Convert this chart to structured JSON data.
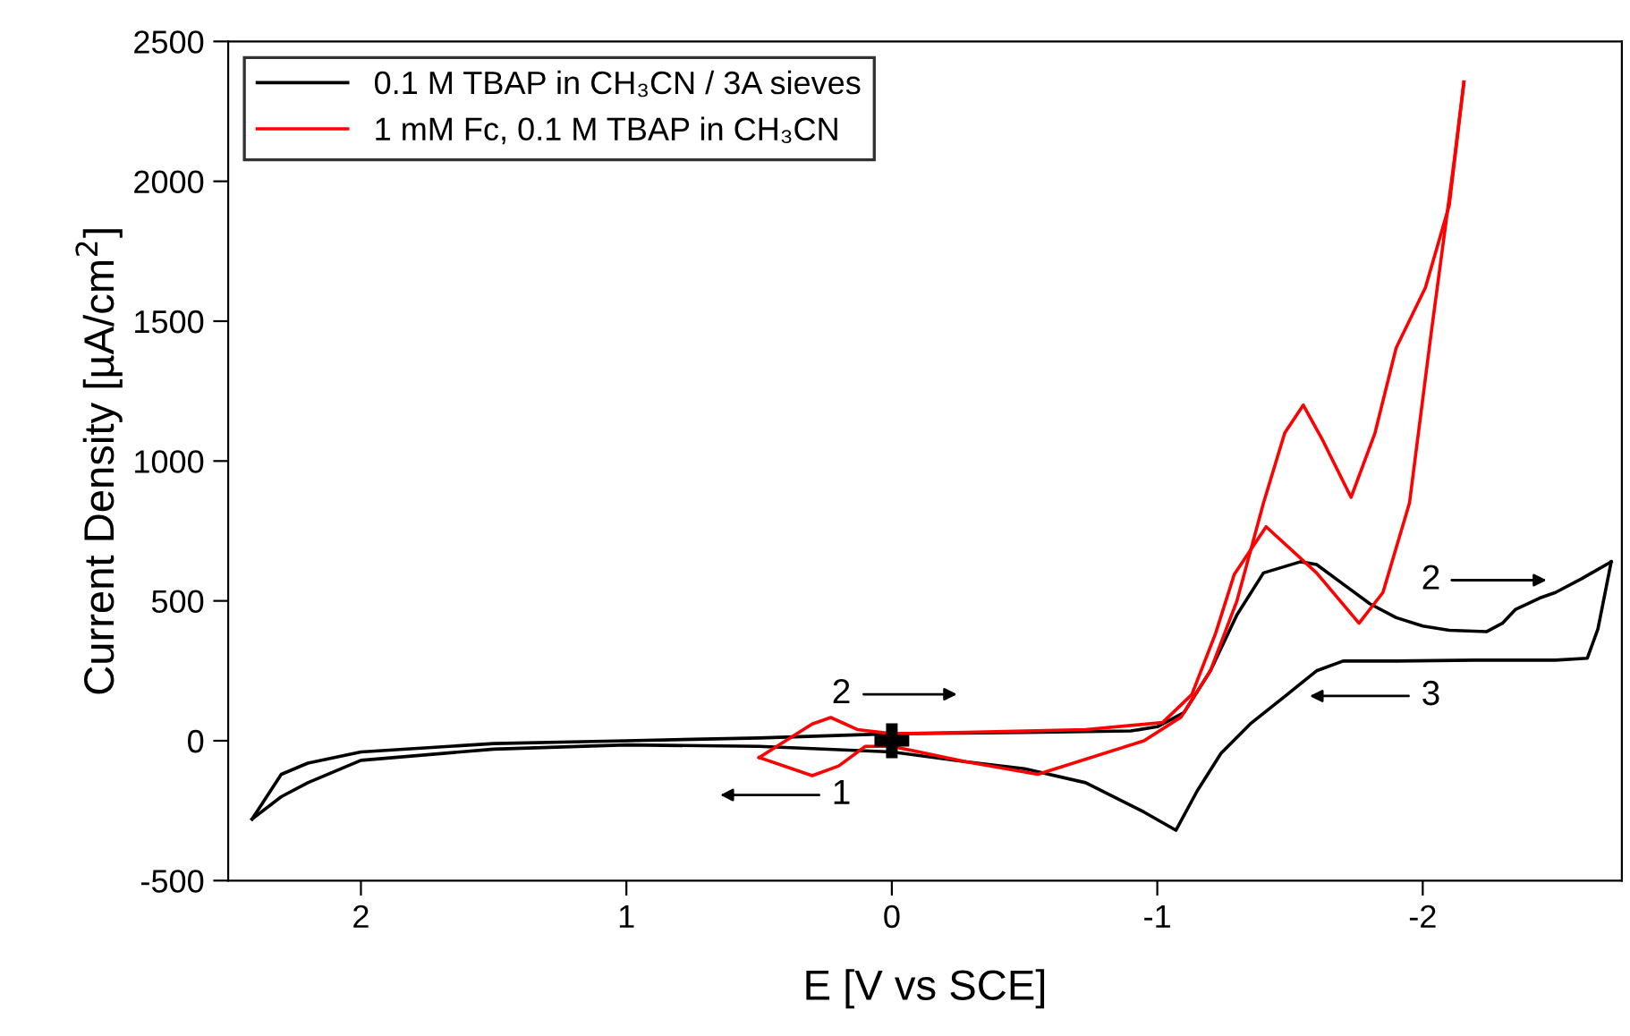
{
  "chart_data": {
    "type": "line",
    "xlabel": "E [V vs SCE]",
    "ylabel": "Current Density [µA/cm$^{2}$]",
    "xlim": [
      2.5,
      -2.75
    ],
    "xticks": [
      2,
      1,
      0,
      -1,
      -2
    ],
    "ylim": [
      -500,
      2500
    ],
    "yticks": [
      -500,
      0,
      500,
      1000,
      1500,
      2000,
      2500
    ],
    "grid": false,
    "legend": "top left",
    "line_style": "solid",
    "marker": "none",
    "series": [
      {
        "name": "0.1 M TBAP in CH₃CN / 3A sieves",
        "color": "#000000",
        "x": [
          2.41,
          2.3,
          2.2,
          2.0,
          1.5,
          1.0,
          0.5,
          0,
          -0.5,
          -0.9,
          -1.0,
          -1.1,
          -1.2,
          -1.3,
          -1.4,
          -1.54,
          -1.6,
          -1.7,
          -1.8,
          -1.9,
          -2.0,
          -2.1,
          -2.24,
          -2.3,
          -2.35,
          -2.44,
          -2.5,
          -2.6,
          -2.71
        ],
        "values": [
          -280,
          -120,
          -80,
          -40,
          -10,
          0,
          10,
          25,
          30,
          35,
          50,
          100,
          250,
          450,
          600,
          640,
          630,
          560,
          490,
          440,
          410,
          395,
          390,
          420,
          470,
          510,
          530,
          580,
          640
        ]
      },
      {
        "color": "#000000",
        "x": [
          -2.71,
          -2.66,
          -2.62,
          -2.5,
          -2.2,
          -1.9,
          -1.7,
          -1.6,
          -1.49,
          -1.35,
          -1.24,
          -1.15,
          -1.07,
          -0.95,
          -0.73,
          -0.5,
          -0.28,
          0,
          0.5,
          1.0,
          1.5,
          2.0,
          2.2,
          2.3,
          2.41
        ],
        "values": [
          640,
          400,
          295,
          288,
          288,
          285,
          285,
          250,
          166,
          60,
          -45,
          -180,
          -320,
          -255,
          -150,
          -100,
          -75,
          -40,
          -20,
          -15,
          -30,
          -70,
          -150,
          -200,
          -280
        ]
      },
      {
        "name": "1 mM Fc, 0.1 M TBAP in CH₃CN",
        "color": "#ff0000",
        "x": [
          0.5,
          0.3,
          0.2,
          0.1,
          0,
          -0.28,
          -0.55,
          -0.95,
          -1.09,
          -1.2,
          -1.3,
          -1.4,
          -1.48,
          -1.55,
          -1.62,
          -1.73,
          -1.82,
          -1.9,
          -2.01,
          -2.1,
          -2.155
        ],
        "values": [
          -60,
          -125,
          -90,
          -20,
          -20,
          -75,
          -120,
          0,
          85,
          250,
          500,
          850,
          1100,
          1200,
          1080,
          870,
          1100,
          1405,
          1620,
          1915,
          2355
        ]
      },
      {
        "color": "#ff0000",
        "x": [
          -2.155,
          -2.12,
          -2.03,
          -1.95,
          -1.85,
          -1.76,
          -1.6,
          -1.41,
          -1.29,
          -1.22,
          -1.13,
          -1.02,
          -0.73,
          -0.28,
          0,
          0.13,
          0.23,
          0.3,
          0.5
        ],
        "values": [
          2355,
          2085,
          1445,
          850,
          530,
          420,
          600,
          765,
          595,
          385,
          165,
          65,
          40,
          30,
          25,
          40,
          83,
          60,
          -60
        ]
      },
      {
        "type": "scatter",
        "color": "#000000",
        "marker": "cross",
        "x": [
          0
        ],
        "values": [
          0
        ]
      }
    ],
    "annotations": [
      "1",
      "2",
      "2",
      "3"
    ]
  }
}
